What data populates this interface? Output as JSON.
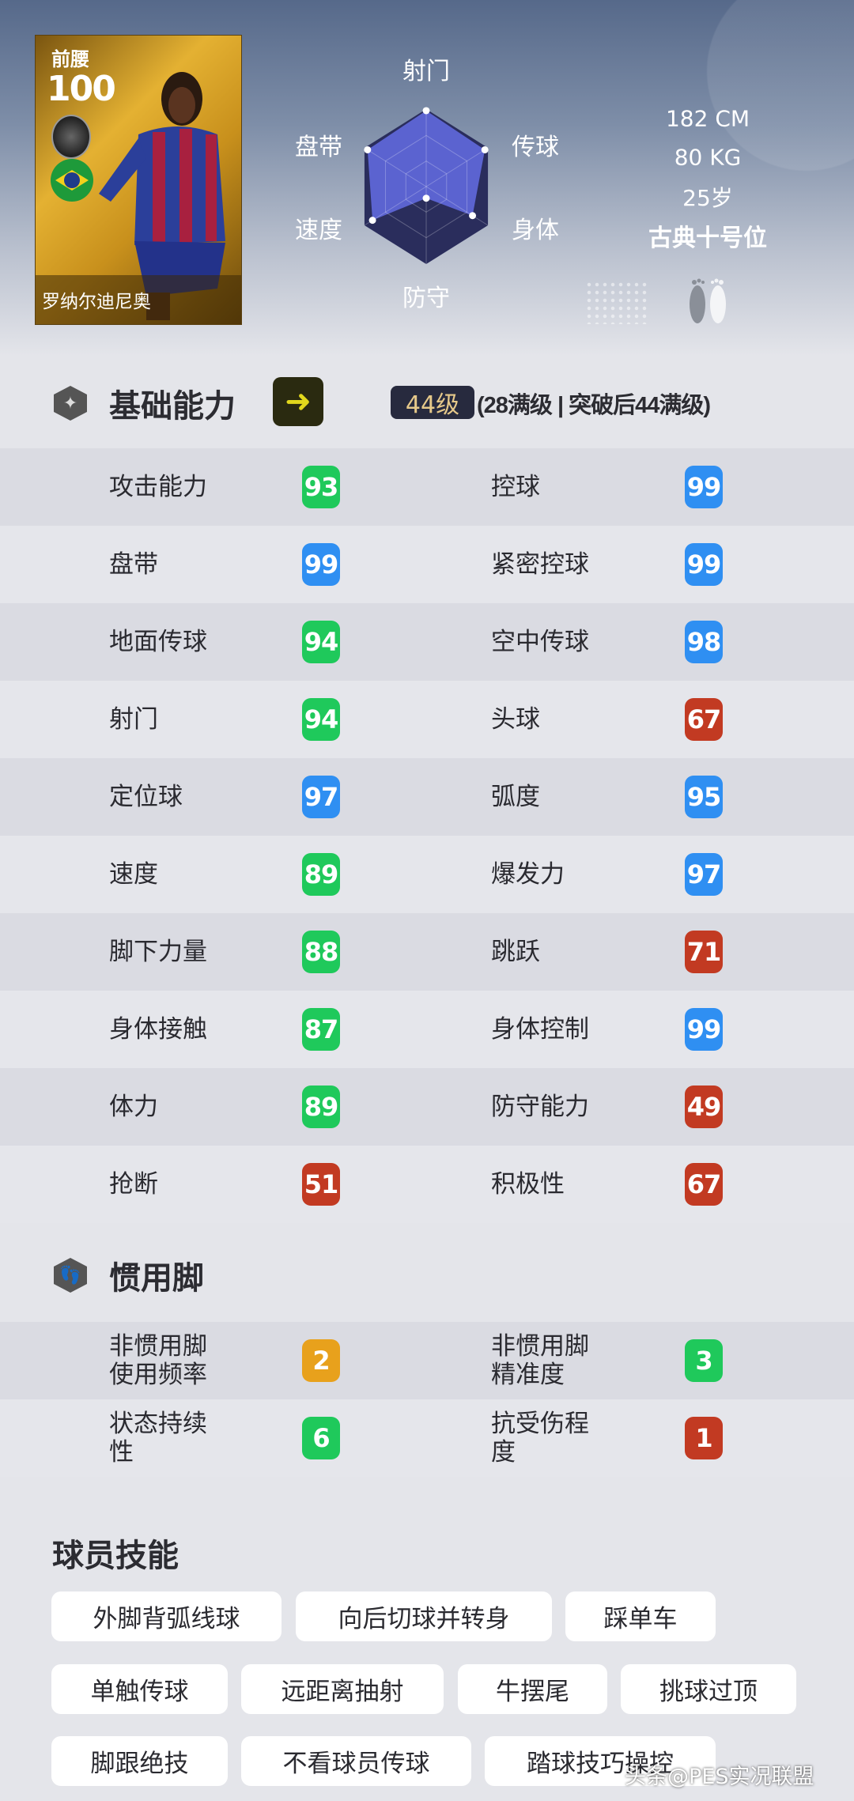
{
  "card": {
    "position": "前腰",
    "rating": "100",
    "name": "罗纳尔迪尼奥",
    "club_icon": "club-badge-icon",
    "nation_icon": "brazil-flag-icon"
  },
  "radar": {
    "labels": {
      "shooting": "射门",
      "passing": "传球",
      "physical": "身体",
      "defense": "防守",
      "speed": "速度",
      "dribbling": "盘带"
    },
    "levels": {
      "shooting": 0.98,
      "passing": 0.95,
      "physical": 0.75,
      "defense": 0.15,
      "speed": 0.87,
      "dribbling": 0.95
    },
    "colors": {
      "outer": "#2a2d5c",
      "fill": "#5b63d0"
    }
  },
  "profile": {
    "height": "182 CM",
    "weight": "80 KG",
    "age": "25岁",
    "style": "古典十号位",
    "foot_icon": "feet-icon"
  },
  "basic": {
    "title": "基础能力",
    "level": "44级",
    "level_note": "(28满级 | 突破后44满级)",
    "stats": [
      [
        "攻击能力",
        "93",
        "green",
        "控球",
        "99",
        "blue"
      ],
      [
        "盘带",
        "99",
        "blue",
        "紧密控球",
        "99",
        "blue"
      ],
      [
        "地面传球",
        "94",
        "green",
        "空中传球",
        "98",
        "blue"
      ],
      [
        "射门",
        "94",
        "green",
        "头球",
        "67",
        "red"
      ],
      [
        "定位球",
        "97",
        "blue",
        "弧度",
        "95",
        "blue"
      ],
      [
        "速度",
        "89",
        "green",
        "爆发力",
        "97",
        "blue"
      ],
      [
        "脚下力量",
        "88",
        "green",
        "跳跃",
        "71",
        "red"
      ],
      [
        "身体接触",
        "87",
        "green",
        "身体控制",
        "99",
        "blue"
      ],
      [
        "体力",
        "89",
        "green",
        "防守能力",
        "49",
        "red"
      ],
      [
        "抢断",
        "51",
        "red",
        "积极性",
        "67",
        "red"
      ]
    ]
  },
  "foot": {
    "title": "惯用脚",
    "stats": [
      [
        "非惯用脚\n使用频率",
        "2",
        "orange",
        "非惯用脚\n精准度",
        "3",
        "green"
      ],
      [
        "状态持续\n性",
        "6",
        "green",
        "抗受伤程\n度",
        "1",
        "red"
      ]
    ]
  },
  "skills": {
    "title": "球员技能",
    "items": [
      "外脚背弧线球",
      "向后切球并转身",
      "踩单车",
      "单触传球",
      "远距离抽射",
      "牛摆尾",
      "挑球过顶",
      "脚跟绝技",
      "不看球员传球",
      "踏球技巧操控"
    ]
  },
  "colors": {
    "green": "#1fc95b",
    "blue": "#2f8ff2",
    "red": "#c23a22",
    "orange": "#e8a11c"
  },
  "watermark": "头条@PES实况联盟"
}
